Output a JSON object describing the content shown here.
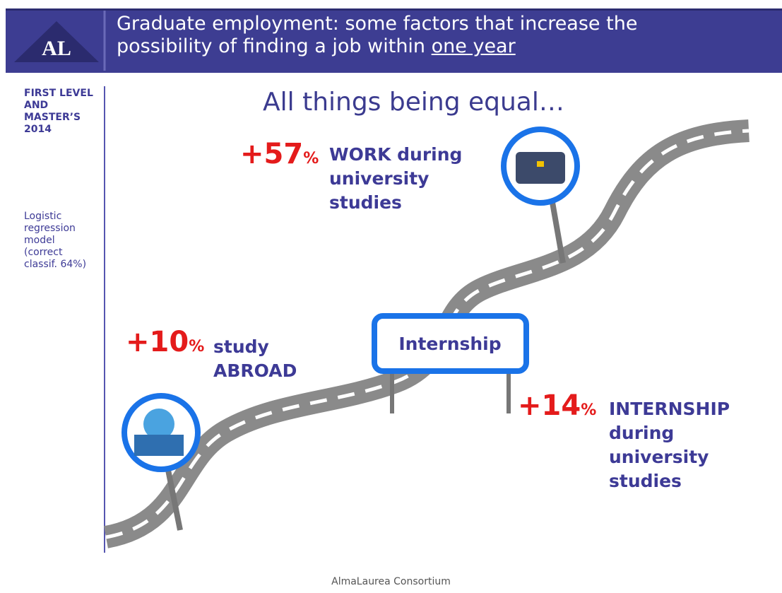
{
  "header": {
    "logo": "AL",
    "title_lines": [
      "Graduate employment: some factors that increase the",
      "possibility of finding a job within "
    ],
    "title_underlined": "one year"
  },
  "sidebar": {
    "cohort": [
      "FIRST LEVEL",
      "AND",
      "MASTER’S",
      "2014"
    ],
    "model": [
      "Logistic",
      "regression",
      "model",
      "(correct",
      "classif. 64%)"
    ]
  },
  "subtitle": "All things being equal…",
  "factors": [
    {
      "change": "+57",
      "unit": "%",
      "label": [
        "WORK during",
        "university",
        "studies"
      ]
    },
    {
      "change": "+10",
      "unit": "%",
      "label": [
        "study",
        "ABROAD"
      ]
    },
    {
      "change": "+14",
      "unit": "%",
      "label": [
        "INTERNSHIP",
        "during",
        "university",
        "studies"
      ]
    }
  ],
  "sign": "Internship",
  "footer": "AlmaLaurea Consortium"
}
